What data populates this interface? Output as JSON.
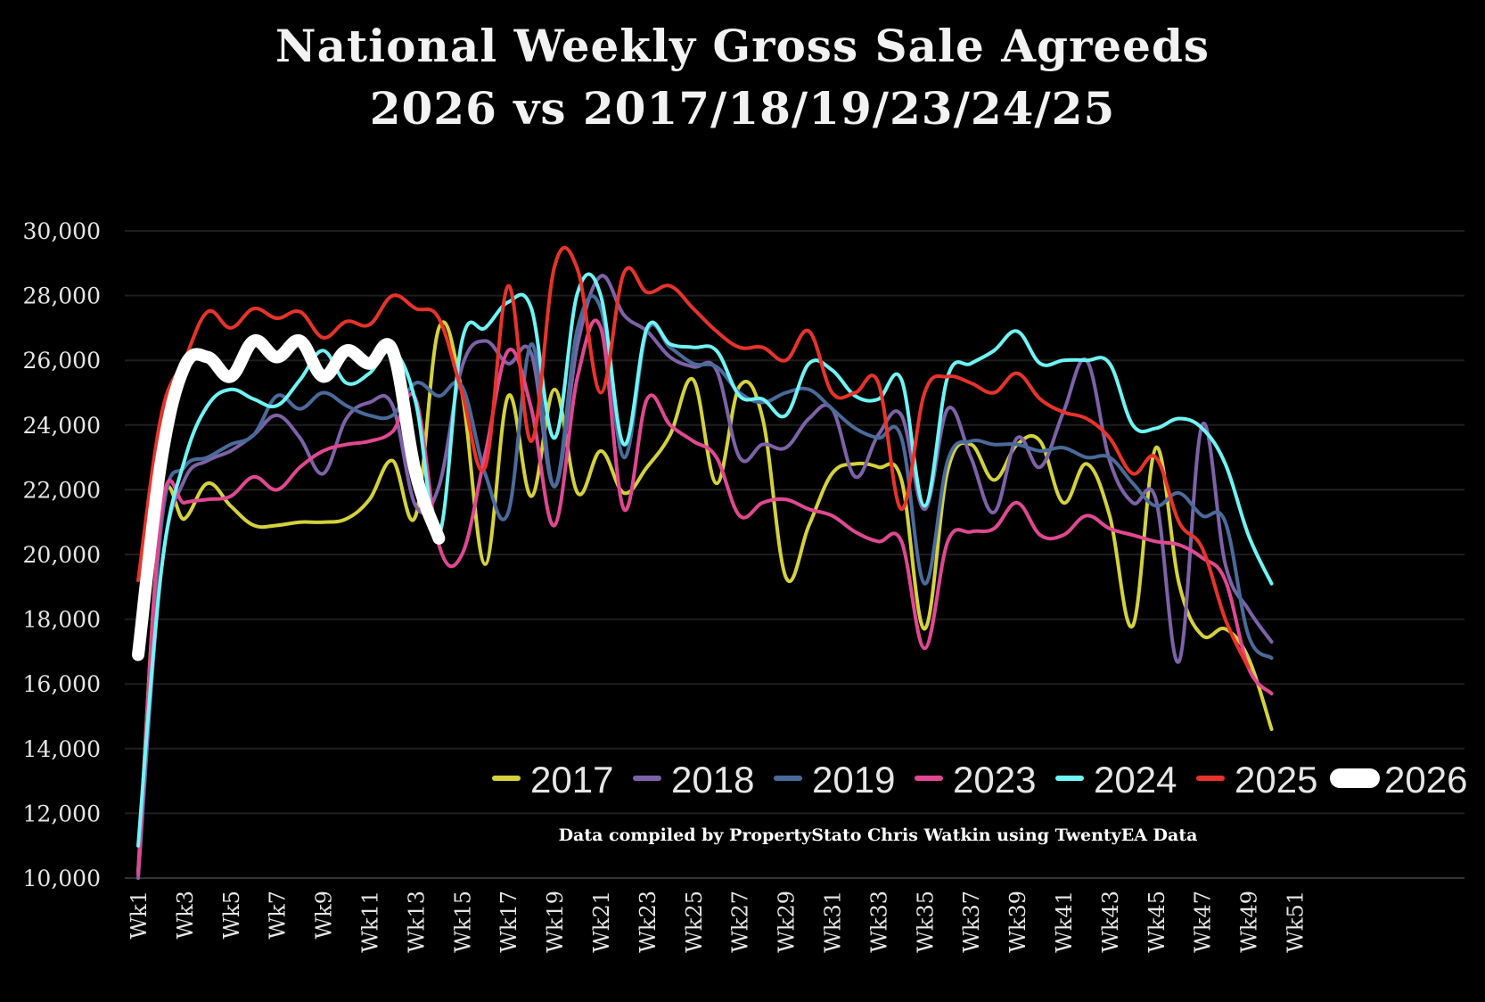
{
  "chart_data": {
    "type": "line",
    "title": "National Weekly Gross Sale Agreeds",
    "subtitle": "2026 vs 2017/18/19/23/24/25",
    "note": "Data compiled by PropertyStato Chris Watkin using TwentyEA Data",
    "xlabel": "",
    "ylabel": "",
    "ylim": [
      10000,
      30000
    ],
    "yticks": [
      10000,
      12000,
      14000,
      16000,
      18000,
      20000,
      22000,
      24000,
      26000,
      28000,
      30000
    ],
    "ytick_labels": [
      "10,000",
      "12,000",
      "14,000",
      "16,000",
      "18,000",
      "20,000",
      "22,000",
      "24,000",
      "26,000",
      "28,000",
      "30,000"
    ],
    "x_categories_count": 52,
    "xtick_labels": [
      "Wk1",
      "Wk3",
      "Wk5",
      "Wk7",
      "Wk9",
      "Wk11",
      "Wk13",
      "Wk15",
      "Wk17",
      "Wk19",
      "Wk21",
      "Wk23",
      "Wk25",
      "Wk27",
      "Wk29",
      "Wk31",
      "Wk33",
      "Wk35",
      "Wk37",
      "Wk39",
      "Wk41",
      "Wk43",
      "Wk45",
      "Wk47",
      "Wk49",
      "Wk51"
    ],
    "grid": true,
    "legend_position": "bottom-right",
    "series": [
      {
        "name": "2017",
        "color": "#d4d23c",
        "width": 4,
        "values": [
          10200,
          21300,
          21100,
          22200,
          21500,
          20900,
          20900,
          21000,
          21000,
          21100,
          21700,
          22900,
          21200,
          27000,
          25000,
          19700,
          24900,
          21800,
          25100,
          21900,
          23200,
          21900,
          22700,
          23700,
          25400,
          22200,
          25200,
          24200,
          19300,
          20900,
          22500,
          22800,
          22700,
          22300,
          17700,
          22600,
          23400,
          22300,
          23400,
          23500,
          21600,
          22800,
          21200,
          17800,
          23300,
          19100,
          17500,
          17700,
          16800,
          14600
        ]
      },
      {
        "name": "2018",
        "color": "#7d62a8",
        "width": 4,
        "values": [
          10000,
          19500,
          22300,
          22900,
          23200,
          23700,
          24300,
          23600,
          22500,
          24200,
          24700,
          24600,
          21500,
          22100,
          25800,
          26600,
          25900,
          26200,
          22100,
          26500,
          28600,
          27400,
          26900,
          26100,
          25800,
          25700,
          23000,
          23400,
          23300,
          24200,
          24500,
          22400,
          23700,
          24300,
          21400,
          24500,
          23000,
          21300,
          23600,
          22700,
          24400,
          26000,
          22900,
          21600,
          21700,
          16700,
          24000,
          19700,
          18300,
          17300
        ]
      },
      {
        "name": "2019",
        "color": "#4a6b9a",
        "width": 4,
        "values": [
          10100,
          20900,
          22700,
          23000,
          23400,
          23700,
          24900,
          24500,
          25000,
          24600,
          24300,
          24300,
          25300,
          24900,
          25200,
          22500,
          21300,
          26500,
          22100,
          27000,
          27600,
          23000,
          26900,
          26400,
          25900,
          25800,
          25000,
          24700,
          25000,
          25100,
          24500,
          23900,
          23600,
          23600,
          19100,
          22900,
          23500,
          23400,
          23400,
          23200,
          23300,
          23000,
          23000,
          22200,
          21500,
          21900,
          21200,
          21000,
          17500,
          16800
        ]
      },
      {
        "name": "2023",
        "color": "#e04891",
        "width": 4,
        "values": [
          10100,
          21300,
          21600,
          21700,
          21800,
          22400,
          22000,
          22700,
          23200,
          23400,
          23500,
          23800,
          24800,
          20300,
          20000,
          23100,
          26300,
          24500,
          20900,
          25500,
          27000,
          21400,
          24800,
          24000,
          23500,
          23000,
          21200,
          21600,
          21700,
          21400,
          21200,
          20700,
          20400,
          20400,
          17100,
          20400,
          20700,
          20800,
          21600,
          20600,
          20600,
          21200,
          20800,
          20600,
          20400,
          20300,
          19900,
          19200,
          16500,
          15700
        ]
      },
      {
        "name": "2024",
        "color": "#6ff5f5",
        "width": 4,
        "values": [
          11000,
          19500,
          22900,
          24600,
          25100,
          24800,
          24600,
          25400,
          26300,
          25300,
          25600,
          26300,
          24700,
          20600,
          26600,
          27000,
          27800,
          27600,
          23600,
          28100,
          28000,
          23400,
          27000,
          26500,
          26400,
          26300,
          24900,
          24800,
          24300,
          25900,
          25700,
          24900,
          24800,
          25400,
          21500,
          25500,
          25900,
          26300,
          26900,
          25900,
          26000,
          26000,
          25900,
          24000,
          23900,
          24200,
          23900,
          22800,
          20600,
          19100
        ]
      },
      {
        "name": "2025",
        "color": "#e8332a",
        "width": 4,
        "values": [
          19200,
          24300,
          26000,
          27500,
          27000,
          27600,
          27300,
          27500,
          26700,
          27200,
          27100,
          28000,
          27600,
          27300,
          25000,
          22700,
          28300,
          23500,
          28900,
          28800,
          25000,
          28700,
          28100,
          28300,
          27600,
          26900,
          26400,
          26400,
          26000,
          26900,
          25000,
          25000,
          25300,
          21400,
          25000,
          25500,
          25300,
          25000,
          25600,
          24800,
          24400,
          24200,
          23600,
          22500,
          23000,
          21000,
          20200,
          18000,
          16500
        ]
      },
      {
        "name": "2026",
        "color": "#ffffff",
        "width": 14,
        "values": [
          16900,
          22900,
          25800,
          26100,
          25500,
          26600,
          26100,
          26600,
          25500,
          26300,
          25900,
          26300,
          22500,
          20500
        ]
      }
    ]
  }
}
